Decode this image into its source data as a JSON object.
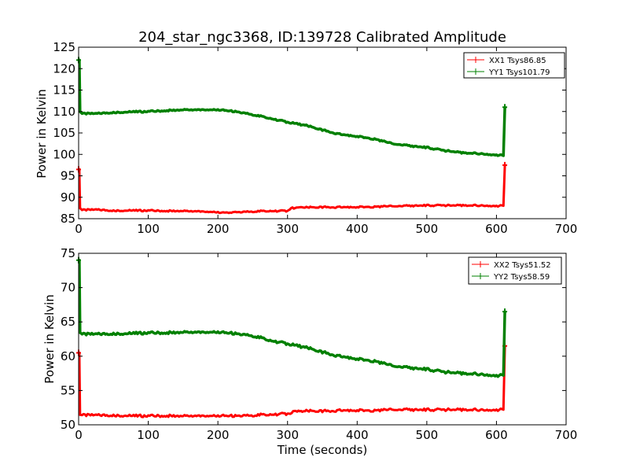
{
  "chart_data": [
    {
      "type": "line",
      "title": "204_star_ngc3368, ID:139728 Calibrated Amplitude",
      "xlabel": "",
      "ylabel": "Power in Kelvin",
      "xlim": [
        0,
        700
      ],
      "ylim": [
        85,
        125
      ],
      "xticks": [
        0,
        100,
        200,
        300,
        400,
        500,
        600,
        700
      ],
      "yticks": [
        85,
        90,
        95,
        100,
        105,
        110,
        115,
        120,
        125
      ],
      "legend_position": "top-right",
      "series": [
        {
          "name": "XX1 Tsys86.85",
          "color": "#ff0000",
          "points": [
            [
              0,
              96.5
            ],
            [
              1,
              96.5
            ],
            [
              2,
              87.5
            ],
            [
              5,
              87.0
            ],
            [
              25,
              87.1
            ],
            [
              50,
              86.9
            ],
            [
              75,
              86.9
            ],
            [
              100,
              86.9
            ],
            [
              125,
              86.8
            ],
            [
              150,
              86.8
            ],
            [
              175,
              86.7
            ],
            [
              200,
              86.5
            ],
            [
              210,
              86.3
            ],
            [
              225,
              86.5
            ],
            [
              250,
              86.7
            ],
            [
              275,
              86.8
            ],
            [
              300,
              86.8
            ],
            [
              305,
              87.5
            ],
            [
              325,
              87.6
            ],
            [
              350,
              87.7
            ],
            [
              375,
              87.7
            ],
            [
              400,
              87.7
            ],
            [
              425,
              87.8
            ],
            [
              450,
              87.9
            ],
            [
              475,
              88.0
            ],
            [
              500,
              88.1
            ],
            [
              525,
              88.1
            ],
            [
              550,
              88.1
            ],
            [
              575,
              88.1
            ],
            [
              600,
              88.0
            ],
            [
              610,
              88.0
            ],
            [
              612,
              97.5
            ]
          ]
        },
        {
          "name": "YY1 Tsys101.79",
          "color": "#008000",
          "points": [
            [
              0,
              122.0
            ],
            [
              1,
              122.0
            ],
            [
              2,
              110.0
            ],
            [
              5,
              109.5
            ],
            [
              25,
              109.5
            ],
            [
              50,
              109.8
            ],
            [
              75,
              109.9
            ],
            [
              100,
              110.0
            ],
            [
              125,
              110.2
            ],
            [
              150,
              110.4
            ],
            [
              175,
              110.4
            ],
            [
              200,
              110.4
            ],
            [
              225,
              110.0
            ],
            [
              250,
              109.3
            ],
            [
              275,
              108.4
            ],
            [
              300,
              107.5
            ],
            [
              325,
              106.8
            ],
            [
              350,
              105.7
            ],
            [
              375,
              104.7
            ],
            [
              400,
              104.2
            ],
            [
              425,
              103.6
            ],
            [
              450,
              102.5
            ],
            [
              475,
              102.0
            ],
            [
              500,
              101.6
            ],
            [
              525,
              100.9
            ],
            [
              550,
              100.4
            ],
            [
              575,
              100.2
            ],
            [
              600,
              99.9
            ],
            [
              610,
              99.7
            ],
            [
              612,
              111.0
            ]
          ]
        }
      ]
    },
    {
      "type": "line",
      "title": "",
      "xlabel": "Time (seconds)",
      "ylabel": "Power in Kelvin",
      "xlim": [
        0,
        700
      ],
      "ylim": [
        50,
        75
      ],
      "xticks": [
        0,
        100,
        200,
        300,
        400,
        500,
        600,
        700
      ],
      "yticks": [
        50,
        55,
        60,
        65,
        70,
        75
      ],
      "legend_position": "top-right",
      "series": [
        {
          "name": "XX2 Tsys51.52",
          "color": "#ff0000",
          "points": [
            [
              0,
              60.5
            ],
            [
              1,
              60.5
            ],
            [
              2,
              51.5
            ],
            [
              5,
              51.4
            ],
            [
              25,
              51.4
            ],
            [
              50,
              51.4
            ],
            [
              75,
              51.3
            ],
            [
              100,
              51.3
            ],
            [
              125,
              51.3
            ],
            [
              150,
              51.3
            ],
            [
              175,
              51.3
            ],
            [
              200,
              51.3
            ],
            [
              225,
              51.3
            ],
            [
              250,
              51.4
            ],
            [
              275,
              51.5
            ],
            [
              300,
              51.6
            ],
            [
              310,
              51.9
            ],
            [
              325,
              52.0
            ],
            [
              350,
              52.0
            ],
            [
              375,
              52.1
            ],
            [
              400,
              52.1
            ],
            [
              425,
              52.1
            ],
            [
              450,
              52.2
            ],
            [
              475,
              52.2
            ],
            [
              500,
              52.2
            ],
            [
              525,
              52.2
            ],
            [
              550,
              52.2
            ],
            [
              575,
              52.2
            ],
            [
              600,
              52.2
            ],
            [
              610,
              52.2
            ],
            [
              612,
              61.5
            ]
          ]
        },
        {
          "name": "YY2 Tsys58.59",
          "color": "#008000",
          "points": [
            [
              0,
              74.0
            ],
            [
              1,
              74.0
            ],
            [
              2,
              63.5
            ],
            [
              5,
              63.2
            ],
            [
              25,
              63.2
            ],
            [
              50,
              63.3
            ],
            [
              75,
              63.3
            ],
            [
              100,
              63.4
            ],
            [
              125,
              63.4
            ],
            [
              150,
              63.5
            ],
            [
              175,
              63.5
            ],
            [
              200,
              63.5
            ],
            [
              225,
              63.3
            ],
            [
              250,
              63.0
            ],
            [
              275,
              62.3
            ],
            [
              300,
              61.8
            ],
            [
              325,
              61.3
            ],
            [
              350,
              60.6
            ],
            [
              375,
              60.0
            ],
            [
              400,
              59.6
            ],
            [
              425,
              59.3
            ],
            [
              450,
              58.6
            ],
            [
              475,
              58.3
            ],
            [
              500,
              58.1
            ],
            [
              525,
              57.7
            ],
            [
              550,
              57.5
            ],
            [
              575,
              57.4
            ],
            [
              600,
              57.2
            ],
            [
              610,
              57.2
            ],
            [
              612,
              66.5
            ]
          ]
        }
      ]
    }
  ]
}
